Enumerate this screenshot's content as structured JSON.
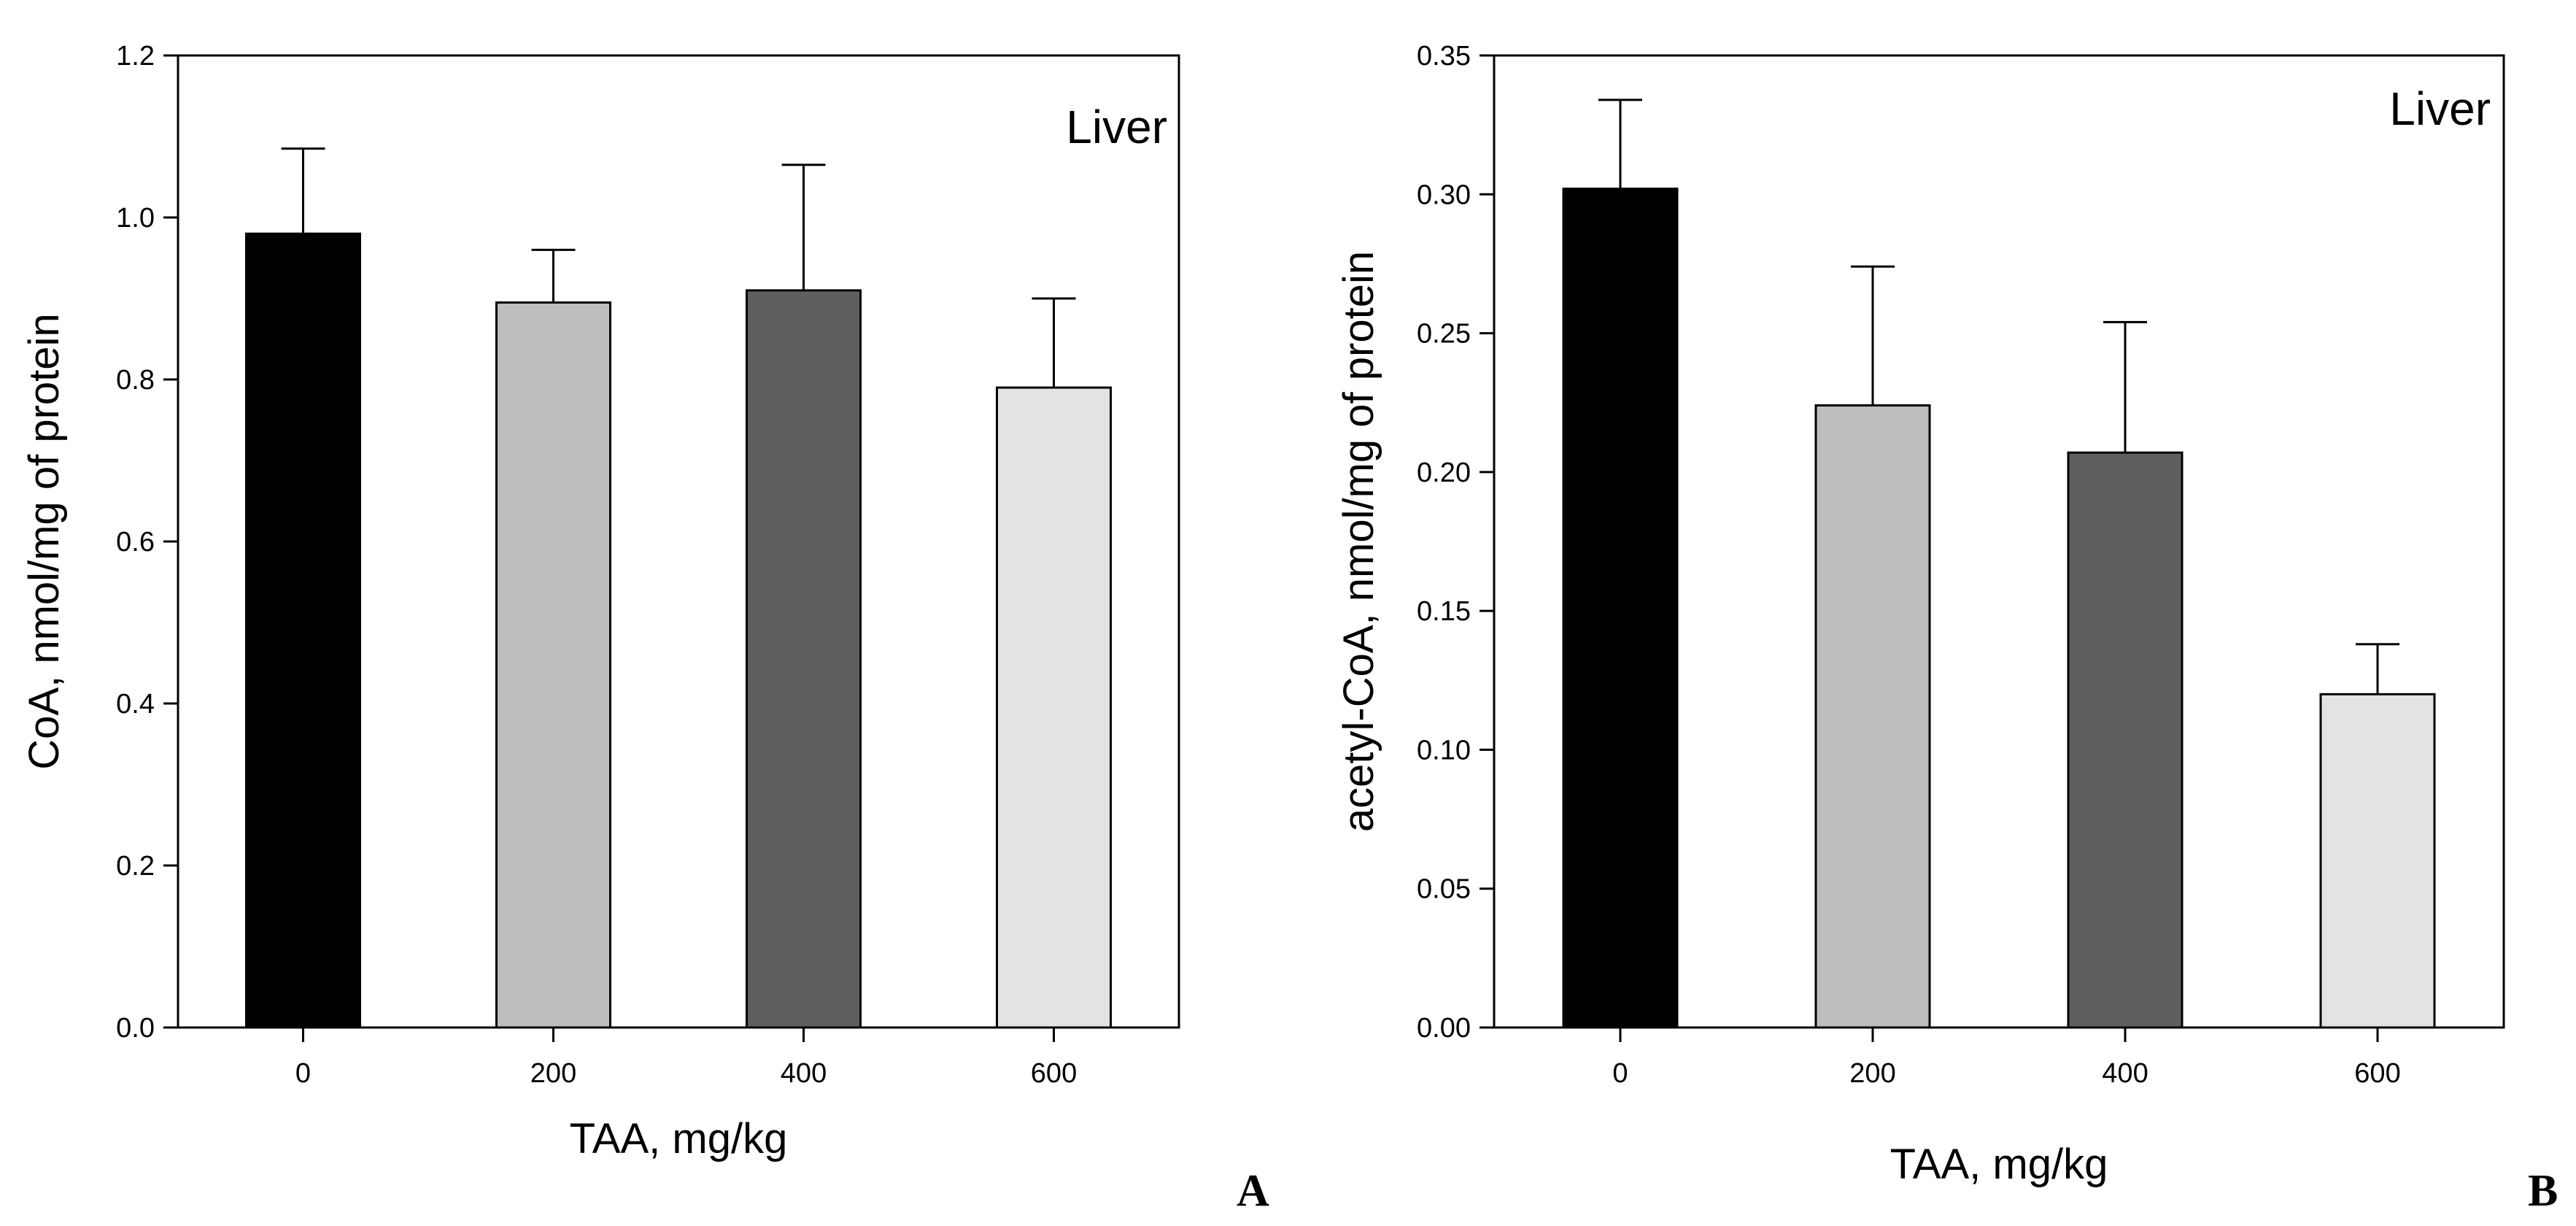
{
  "chart_data": [
    {
      "type": "bar",
      "panel_label": "A",
      "title": "Liver",
      "xlabel": "TAA, mg/kg",
      "ylabel": "CoA, nmol/mg of protein",
      "categories": [
        "0",
        "200",
        "400",
        "600"
      ],
      "values": [
        0.98,
        0.895,
        0.91,
        0.79
      ],
      "errors": [
        0.105,
        0.065,
        0.155,
        0.11
      ],
      "colors": [
        "#000000",
        "#bebebe",
        "#5f5f5f",
        "#e3e3e3"
      ],
      "ylim": [
        0,
        1.2
      ],
      "yticks": [
        "0.0",
        "0.2",
        "0.4",
        "0.6",
        "0.8",
        "1.0",
        "1.2"
      ],
      "grid": false
    },
    {
      "type": "bar",
      "panel_label": "B",
      "title": "Liver",
      "xlabel": "TAA, mg/kg",
      "ylabel": "acetyl-CoA, nmol/mg of protein",
      "categories": [
        "0",
        "200",
        "400",
        "600"
      ],
      "values": [
        0.302,
        0.224,
        0.207,
        0.12
      ],
      "errors": [
        0.032,
        0.05,
        0.047,
        0.018
      ],
      "colors": [
        "#000000",
        "#bebebe",
        "#5f5f5f",
        "#e3e3e3"
      ],
      "ylim": [
        0,
        0.35
      ],
      "yticks": [
        "0.00",
        "0.05",
        "0.10",
        "0.15",
        "0.20",
        "0.25",
        "0.30",
        "0.35"
      ],
      "grid": false
    }
  ]
}
